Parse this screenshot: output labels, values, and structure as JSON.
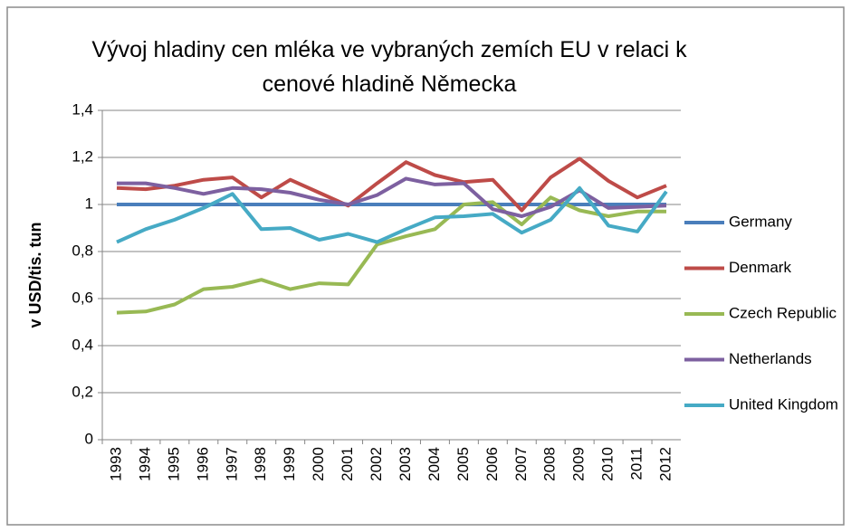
{
  "chart_data": {
    "type": "line",
    "title": "Vývoj hladiny cen mléka ve vybraných zemích EU v relaci k cenové hladině Německa",
    "y_label": "v USD/tis. tun",
    "categories": [
      "1993",
      "1994",
      "1995",
      "1996",
      "1997",
      "1998",
      "1999",
      "2000",
      "2001",
      "2002",
      "2003",
      "2004",
      "2005",
      "2006",
      "2007",
      "2008",
      "2009",
      "2010",
      "2011",
      "2012"
    ],
    "ylim": [
      0,
      1.4
    ],
    "yticks": [
      0,
      {
        "value": 0.2,
        "label": "0,2"
      },
      {
        "value": 0.4,
        "label": "0,4"
      },
      {
        "value": 0.6,
        "label": "0,6"
      },
      {
        "value": 0.8,
        "label": "0,8"
      },
      1,
      {
        "value": 1.2,
        "label": "1,2"
      },
      {
        "value": 1.4,
        "label": "1,4"
      }
    ],
    "grid": true,
    "legend": "right",
    "series": [
      {
        "name": "Germany",
        "color": "#4a7ebb",
        "values": [
          1,
          1,
          1,
          1,
          1,
          1,
          1,
          1,
          1,
          1,
          1,
          1,
          1,
          1,
          1,
          1,
          1,
          1,
          1,
          1
        ]
      },
      {
        "name": "Denmark",
        "color": "#be4b48",
        "values": [
          1.07,
          1.065,
          1.08,
          1.105,
          1.115,
          1.03,
          1.105,
          1.05,
          0.995,
          1.09,
          1.18,
          1.125,
          1.095,
          1.105,
          0.975,
          1.115,
          1.195,
          1.1,
          1.03,
          1.08
        ]
      },
      {
        "name": "Czech Republic",
        "color": "#98b954",
        "values": [
          0.54,
          0.545,
          0.575,
          0.64,
          0.65,
          0.68,
          0.64,
          0.665,
          0.66,
          0.83,
          0.865,
          0.895,
          1.0,
          1.01,
          0.915,
          1.03,
          0.975,
          0.95,
          0.97,
          0.97
        ]
      },
      {
        "name": "Netherlands",
        "color": "#7d60a0",
        "values": [
          1.09,
          1.09,
          1.07,
          1.045,
          1.07,
          1.065,
          1.05,
          1.02,
          1.0,
          1.04,
          1.11,
          1.085,
          1.09,
          0.98,
          0.95,
          0.99,
          1.06,
          0.985,
          0.99,
          0.995
        ]
      },
      {
        "name": "United Kingdom",
        "color": "#46aac5",
        "values": [
          0.84,
          0.895,
          0.935,
          0.985,
          1.045,
          0.895,
          0.9,
          0.85,
          0.875,
          0.84,
          0.895,
          0.945,
          0.95,
          0.96,
          0.88,
          0.935,
          1.07,
          0.91,
          0.885,
          1.055
        ]
      }
    ]
  }
}
